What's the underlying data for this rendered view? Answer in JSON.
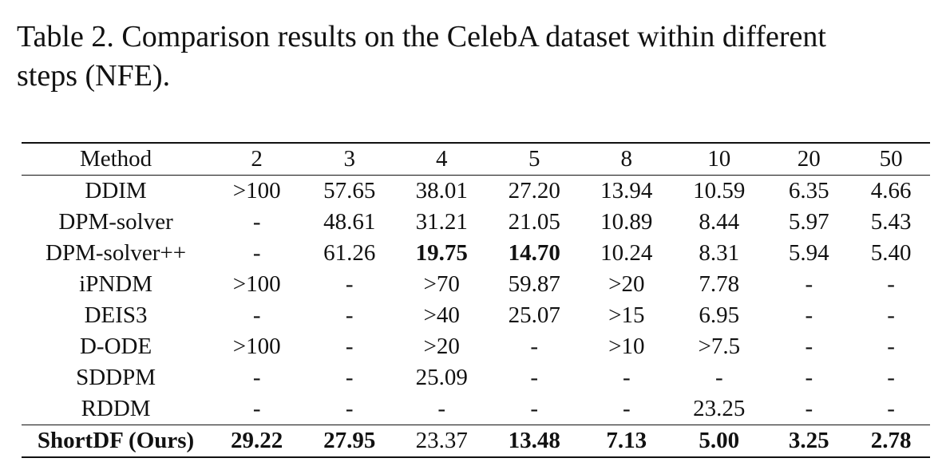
{
  "caption": {
    "line1": "Table 2. Comparison results on the CelebA dataset within different",
    "line2": "steps (NFE)."
  },
  "table": {
    "headers": [
      "Method",
      "2",
      "3",
      "4",
      "5",
      "8",
      "10",
      "20",
      "50"
    ],
    "rows": [
      {
        "method": "DDIM",
        "cells": [
          ">100",
          "57.65",
          "38.01",
          "27.20",
          "13.94",
          "10.59",
          "6.35",
          "4.66"
        ],
        "bold": []
      },
      {
        "method": "DPM-solver",
        "cells": [
          "-",
          "48.61",
          "31.21",
          "21.05",
          "10.89",
          "8.44",
          "5.97",
          "5.43"
        ],
        "bold": []
      },
      {
        "method": "DPM-solver++",
        "cells": [
          "-",
          "61.26",
          "19.75",
          "14.70",
          "10.24",
          "8.31",
          "5.94",
          "5.40"
        ],
        "bold": [
          2,
          3
        ]
      },
      {
        "method": "iPNDM",
        "cells": [
          ">100",
          "-",
          ">70",
          "59.87",
          ">20",
          "7.78",
          "-",
          "-"
        ],
        "bold": []
      },
      {
        "method": "DEIS3",
        "cells": [
          "-",
          "-",
          ">40",
          "25.07",
          ">15",
          "6.95",
          "-",
          "-"
        ],
        "bold": []
      },
      {
        "method": "D-ODE",
        "cells": [
          ">100",
          "-",
          ">20",
          "-",
          ">10",
          ">7.5",
          "-",
          "-"
        ],
        "bold": []
      },
      {
        "method": "SDDPM",
        "cells": [
          "-",
          "-",
          "25.09",
          "-",
          "-",
          "-",
          "-",
          "-"
        ],
        "bold": []
      },
      {
        "method": "RDDM",
        "cells": [
          "-",
          "-",
          "-",
          "-",
          "-",
          "23.25",
          "-",
          "-"
        ],
        "bold": []
      },
      {
        "method": "ShortDF (Ours)",
        "cells": [
          "29.22",
          "27.95",
          "23.37",
          "13.48",
          "7.13",
          "5.00",
          "3.25",
          "2.78"
        ],
        "bold": [
          0,
          1,
          3,
          4,
          5,
          6,
          7
        ],
        "method_bold": true
      }
    ]
  }
}
